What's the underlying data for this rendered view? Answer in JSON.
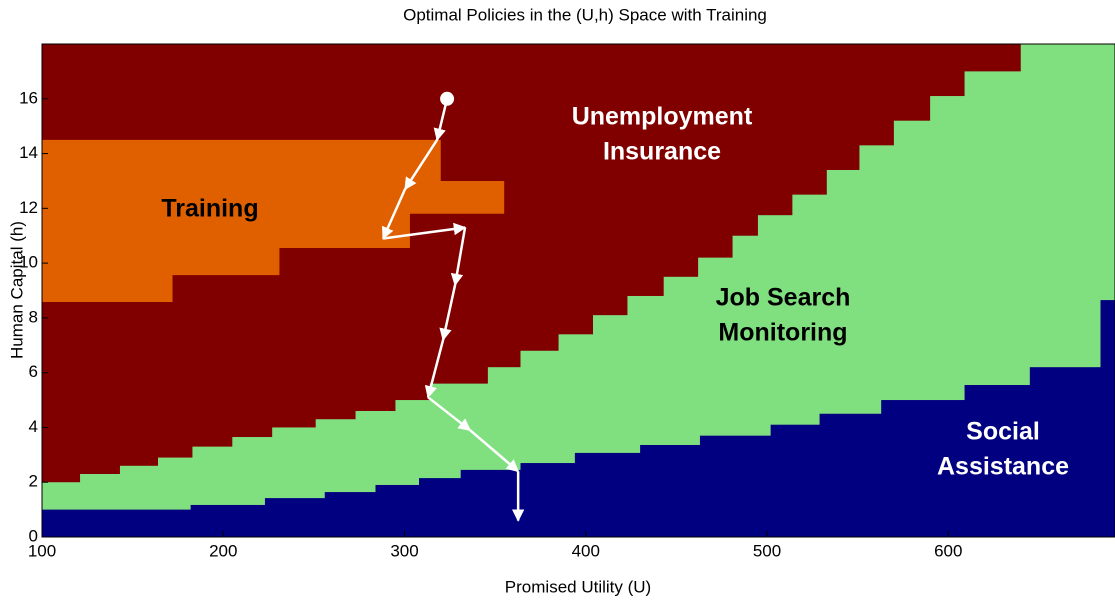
{
  "chart_data": {
    "type": "region",
    "title": "Optimal Policies in the (U,h) Space with Training",
    "xlabel": "Promised Utility (U)",
    "ylabel": "Human Capital (h)",
    "xlim": [
      100,
      692
    ],
    "ylim": [
      0,
      18
    ],
    "xticks": [
      100,
      200,
      300,
      400,
      500,
      600
    ],
    "yticks": [
      0,
      2,
      4,
      6,
      8,
      10,
      12,
      14,
      16
    ],
    "background_color": "#800000",
    "green_boundary": {
      "color": "#80e080",
      "edges": [
        100,
        121,
        143,
        164,
        183,
        205,
        227,
        251,
        273,
        295,
        314,
        346,
        364,
        385,
        404,
        423,
        443,
        462,
        481,
        495,
        514,
        533,
        551,
        570,
        590,
        609,
        640,
        692
      ],
      "values": [
        2.0,
        2.3,
        2.6,
        2.9,
        3.3,
        3.65,
        4.0,
        4.3,
        4.6,
        5.0,
        5.6,
        6.2,
        6.8,
        7.4,
        8.1,
        8.8,
        9.5,
        10.2,
        11.0,
        11.75,
        12.5,
        13.4,
        14.3,
        15.2,
        16.1,
        17.0,
        18
      ]
    },
    "blue_boundary": {
      "color": "#000080",
      "edges": [
        100,
        182,
        223,
        256,
        284,
        308,
        331,
        364,
        394,
        430,
        463,
        502,
        529,
        563,
        609,
        645,
        684,
        692
      ],
      "values": [
        1.0,
        1.17,
        1.42,
        1.64,
        1.9,
        2.15,
        2.45,
        2.7,
        3.07,
        3.36,
        3.7,
        4.1,
        4.5,
        5.0,
        5.55,
        6.2,
        8.65
      ]
    },
    "training_region": {
      "color": "#e06000",
      "x": [
        100,
        320,
        320,
        355,
        355,
        303,
        303,
        231,
        231,
        172,
        172,
        100
      ],
      "y": [
        14.5,
        14.5,
        13.0,
        13.0,
        11.8,
        11.8,
        10.55,
        10.55,
        9.56,
        9.56,
        8.58,
        8.58
      ]
    },
    "path": {
      "color": "#ffffff",
      "x": [
        323.5,
        318,
        300.3,
        288.2,
        333.4,
        327.9,
        321.3,
        313,
        336.2,
        362.7,
        362.7
      ],
      "y": [
        16.0,
        14.5,
        12.7,
        10.9,
        11.3,
        9.2,
        7.2,
        5.1,
        3.9,
        2.4,
        0.6
      ]
    },
    "annotations": [
      [
        "Training"
      ],
      [
        "Unemployment",
        "Insurance"
      ],
      [
        "Job Search",
        "Monitoring"
      ],
      [
        "Social",
        "Assistance"
      ]
    ]
  }
}
